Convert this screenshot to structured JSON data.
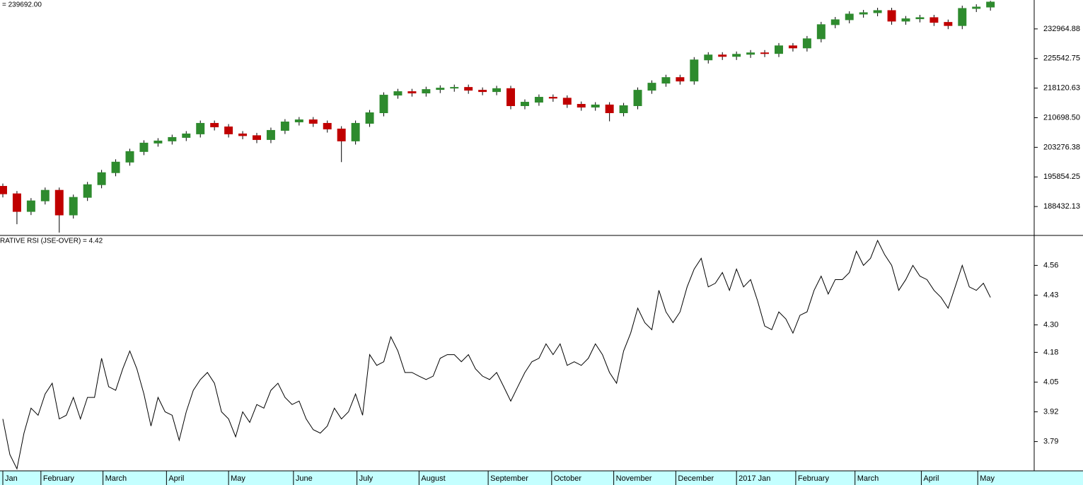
{
  "chart_data": [
    {
      "type": "candlestick",
      "title": "= 239692.00",
      "up_color": "#2e8b2e",
      "down_color": "#c00000",
      "xlim": [
        -0.2,
        73.1
      ],
      "ylim": [
        181187,
        240210
      ],
      "yticks": [
        188432.13,
        195854.25,
        203276.38,
        {
          "value": 210698.5,
          "label": "210698.50"
        },
        218120.63,
        225542.75,
        232964.88
      ],
      "open": [
        193500,
        191620,
        187200,
        189850,
        192500,
        186320,
        190730,
        193910,
        196920,
        199570,
        202220,
        204340,
        204870,
        205750,
        206640,
        209290,
        208400,
        206640,
        206200,
        205220,
        207520,
        209640,
        210170,
        209290,
        207870,
        204870,
        209290,
        211940,
        216360,
        217240,
        216890,
        217770,
        218120,
        218300,
        217590,
        217240,
        218000,
        213710,
        214590,
        215830,
        215600,
        214060,
        213350,
        213900,
        211940,
        213710,
        217590,
        219360,
        220770,
        219890,
        225190,
        226430,
        226070,
        226600,
        226960,
        226800,
        228720,
        228190,
        230490,
        234030,
        235260,
        236680,
        237030,
        237560,
        234910,
        235500,
        235790,
        234600,
        233800,
        238090,
        238440
      ],
      "high": [
        194200,
        192320,
        190550,
        193200,
        193200,
        191430,
        194610,
        197620,
        200270,
        202920,
        205040,
        205570,
        206450,
        207340,
        209990,
        209990,
        209100,
        207340,
        206900,
        208220,
        210340,
        210870,
        210870,
        209990,
        208570,
        209990,
        212640,
        217060,
        217940,
        217940,
        218470,
        218820,
        219000,
        219000,
        218290,
        218700,
        218700,
        215290,
        216530,
        216530,
        216300,
        214760,
        214600,
        214600,
        214410,
        218290,
        220060,
        221470,
        221470,
        225890,
        227130,
        227130,
        227300,
        227660,
        227660,
        229420,
        229420,
        231190,
        234730,
        235960,
        237380,
        237730,
        238260,
        238260,
        236200,
        236490,
        236490,
        235300,
        238790,
        239140,
        240000
      ],
      "low": [
        190720,
        184000,
        186300,
        188950,
        181900,
        185420,
        189830,
        193010,
        196020,
        198670,
        201320,
        203440,
        203970,
        204850,
        205740,
        207500,
        205740,
        205300,
        204320,
        204320,
        206620,
        208740,
        208390,
        206970,
        199570,
        203970,
        208390,
        211040,
        215460,
        215990,
        215990,
        216870,
        217220,
        216690,
        216340,
        216340,
        212810,
        212810,
        213690,
        214700,
        213160,
        212450,
        212450,
        209800,
        211040,
        212810,
        216690,
        218460,
        218990,
        218990,
        224290,
        225170,
        225170,
        225700,
        225900,
        225900,
        227290,
        227290,
        229590,
        233130,
        234360,
        235780,
        236130,
        234010,
        234010,
        234600,
        233700,
        232900,
        232900,
        237190,
        237540
      ],
      "close": [
        191620,
        187200,
        189850,
        192500,
        186320,
        190730,
        193910,
        196920,
        199570,
        202220,
        204340,
        204870,
        205750,
        206640,
        209290,
        208400,
        206640,
        206200,
        205220,
        207520,
        209640,
        210170,
        209290,
        207870,
        204870,
        209290,
        211940,
        216360,
        217240,
        216890,
        217770,
        218120,
        218300,
        217590,
        217240,
        218000,
        213710,
        214590,
        215830,
        215600,
        214060,
        213350,
        213900,
        211940,
        213710,
        217590,
        219360,
        220770,
        219890,
        225190,
        226430,
        226070,
        226600,
        226960,
        226800,
        228720,
        228190,
        230490,
        234030,
        235260,
        236680,
        237030,
        237560,
        234910,
        235500,
        235790,
        234600,
        233800,
        238090,
        238440,
        239692
      ]
    },
    {
      "type": "line",
      "title": "RATIVE RSI (JSE-OVER) = 4.42",
      "color": "#000000",
      "xlim": [
        -0.2,
        73.1
      ],
      "ylim": [
        3.662,
        4.691
      ],
      "yticks": [
        4.56,
        4.43,
        {
          "value": 4.3,
          "label": "4.30"
        },
        4.18,
        4.05,
        3.92,
        3.79
      ],
      "xticks": [
        {
          "value": 0,
          "label": "Jan"
        },
        {
          "value": 2.7,
          "label": "February"
        },
        {
          "value": 7.1,
          "label": "March"
        },
        {
          "value": 11.6,
          "label": "April"
        },
        {
          "value": 16,
          "label": "May"
        },
        {
          "value": 20.6,
          "label": "June"
        },
        {
          "value": 25.1,
          "label": "July"
        },
        {
          "value": 29.5,
          "label": "August"
        },
        {
          "value": 34.4,
          "label": "September"
        },
        {
          "value": 38.9,
          "label": "October"
        },
        {
          "value": 43.3,
          "label": "November"
        },
        {
          "value": 47.7,
          "label": "December"
        },
        {
          "value": 52,
          "label": "2017 Jan"
        },
        {
          "value": 56.2,
          "label": "February"
        },
        {
          "value": 60.4,
          "label": "March"
        },
        {
          "value": 65.1,
          "label": "April"
        },
        {
          "value": 69.1,
          "label": "May"
        }
      ],
      "values": [
        3.889,
        3.733,
        3.671,
        3.827,
        3.936,
        3.905,
        3.998,
        4.045,
        3.889,
        3.905,
        3.983,
        3.889,
        3.983,
        3.983,
        4.154,
        4.03,
        4.014,
        4.108,
        4.186,
        4.108,
        3.998,
        3.858,
        3.983,
        3.92,
        3.905,
        3.796,
        3.92,
        4.014,
        4.061,
        4.092,
        4.045,
        3.92,
        3.889,
        3.811,
        3.92,
        3.874,
        3.952,
        3.936,
        4.014,
        4.045,
        3.983,
        3.952,
        3.967,
        3.889,
        3.842,
        3.827,
        3.858,
        3.936,
        3.889,
        3.92,
        3.998,
        3.905,
        4.17,
        4.123,
        4.139,
        4.248,
        4.186,
        4.092,
        4.092,
        4.076,
        4.061,
        4.076,
        4.154,
        4.17,
        4.17,
        4.139,
        4.17,
        4.108,
        4.076,
        4.061,
        4.092,
        4.03,
        3.967,
        4.03,
        4.092,
        4.139,
        4.154,
        4.217,
        4.17,
        4.217,
        4.123,
        4.139,
        4.123,
        4.154,
        4.217,
        4.17,
        4.092,
        4.045,
        4.186,
        4.264,
        4.373,
        4.31,
        4.279,
        4.451,
        4.357,
        4.31,
        4.357,
        4.466,
        4.544,
        4.591,
        4.466,
        4.482,
        4.529,
        4.451,
        4.544,
        4.466,
        4.498,
        4.404,
        4.295,
        4.279,
        4.357,
        4.326,
        4.264,
        4.342,
        4.357,
        4.451,
        4.513,
        4.435,
        4.498,
        4.498,
        4.529,
        4.622,
        4.56,
        4.591,
        4.669,
        4.607,
        4.56,
        4.451,
        4.498,
        4.56,
        4.513,
        4.498,
        4.451,
        4.42,
        4.373,
        4.466,
        4.56,
        4.466,
        4.451,
        4.482,
        4.42
      ]
    }
  ]
}
